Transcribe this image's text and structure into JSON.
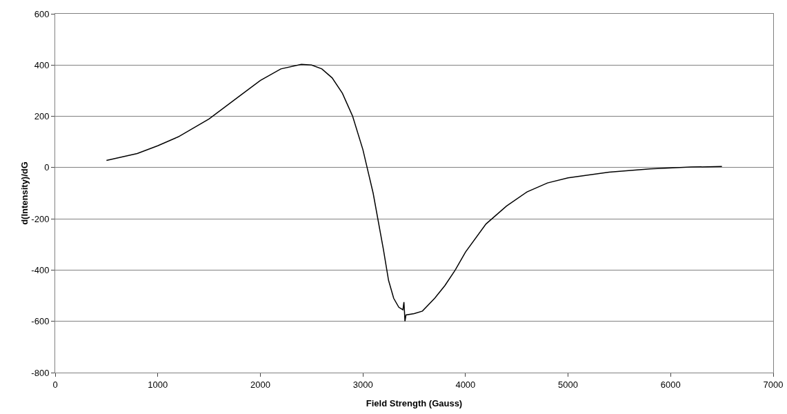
{
  "chart_data": {
    "type": "line",
    "xlabel": "Field Strength (Gauss)",
    "ylabel": "d(Intensity)/dG",
    "xlim": [
      0,
      7000
    ],
    "xticks": [
      0,
      1000,
      2000,
      3000,
      4000,
      5000,
      6000,
      7000
    ],
    "ylim": [
      -800,
      600
    ],
    "yticks": [
      -800,
      -600,
      -400,
      -200,
      0,
      200,
      400,
      600
    ],
    "grid": "y",
    "marker": "none",
    "line_style": "solid",
    "series": [
      {
        "color": "#000000",
        "x": [
          500,
          800,
          1000,
          1200,
          1500,
          1800,
          2000,
          2200,
          2400,
          2500,
          2600,
          2700,
          2800,
          2900,
          3000,
          3100,
          3200,
          3250,
          3300,
          3350,
          3390,
          3400,
          3405,
          3410,
          3420,
          3500,
          3580,
          3700,
          3800,
          3900,
          4000,
          4200,
          4400,
          4600,
          4800,
          5000,
          5400,
          5800,
          6200,
          6500
        ],
        "values": [
          28,
          55,
          85,
          120,
          190,
          280,
          340,
          385,
          403,
          400,
          385,
          350,
          290,
          200,
          70,
          -100,
          -320,
          -440,
          -510,
          -545,
          -555,
          -525,
          -560,
          -600,
          -575,
          -570,
          -560,
          -510,
          -460,
          -400,
          -330,
          -220,
          -150,
          -95,
          -60,
          -40,
          -18,
          -5,
          2,
          4
        ]
      }
    ]
  }
}
